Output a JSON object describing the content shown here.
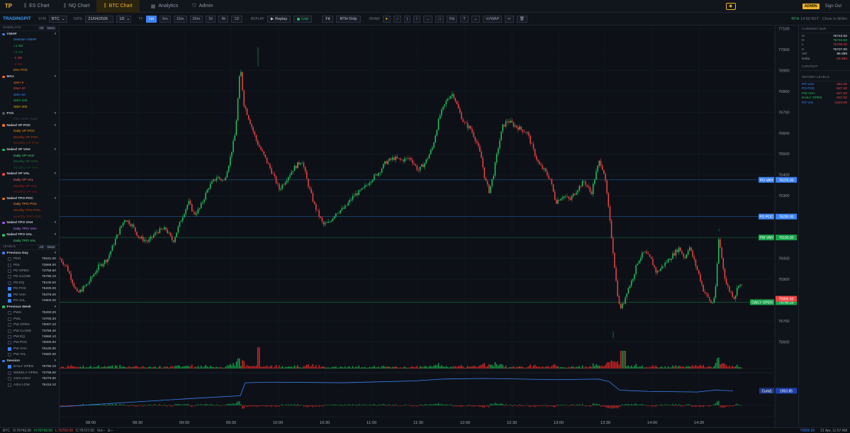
{
  "topbar": {
    "logo": "TP",
    "tabs": [
      {
        "label": "ES Chart",
        "icon": "candles-icon"
      },
      {
        "label": "NQ Chart",
        "icon": "candles-icon"
      },
      {
        "label": "BTC Chart",
        "icon": "candles-icon"
      },
      {
        "label": "Analytics",
        "icon": "grid-icon"
      },
      {
        "label": "Admin",
        "icon": "shield-icon"
      }
    ],
    "active_tab": "BTC Chart",
    "admin_badge": "ADMIN",
    "sign_out": "Sign Out"
  },
  "toolbar": {
    "brand": "TRADINGPIT",
    "sym_label": "SYM",
    "symbol": "BTC",
    "date_label": "DATE",
    "date": "21/04/2026",
    "range": "1D",
    "tf_label": "TF",
    "timeframes": [
      "1m",
      "5m",
      "15m",
      "30m",
      "1h",
      "4h",
      "1D"
    ],
    "active_tf": "1m",
    "replay_label": "REPLAY",
    "replay_btn": "Replay",
    "live_btn": "Live",
    "fit_btn": "Fit",
    "rth_btn": "RTH Only",
    "draw_label": "DRAW",
    "draw_tools": [
      "●",
      "–",
      "|",
      "/",
      "→",
      "□",
      "Fib",
      "T",
      "⌄",
      "xVWAP",
      "↩",
      "🗑"
    ],
    "status_rth": "RTH",
    "status_time": "14:50 BST · Close in 6h9m"
  },
  "sidebar": {
    "overlays_title": "OVERLAYS",
    "all": "All",
    "none": "None",
    "overlay_groups": [
      {
        "name": "VWAP",
        "color": "#3b82f6",
        "items": [
          {
            "label": "Session VWAP",
            "color": "#3b9cf0"
          },
          {
            "label": "+1 SD",
            "color": "#22c55e"
          },
          {
            "label": "+2 SD",
            "color": "#15803d"
          },
          {
            "label": "-1 SD",
            "color": "#ef4444"
          },
          {
            "label": "-2 SD",
            "color": "#991b1b"
          },
          {
            "label": "Dev POC",
            "color": "#f59e0b"
          }
        ]
      },
      {
        "name": "MAs",
        "color": "#f97316",
        "items": [
          {
            "label": "SMA 9",
            "color": "#f97316"
          },
          {
            "label": "EMA 20",
            "color": "#ef4444"
          },
          {
            "label": "SMA 50",
            "color": "#3b82f6"
          },
          {
            "label": "SMA 100",
            "color": "#22c55e"
          },
          {
            "label": "SMA 200",
            "color": "#eab308"
          }
        ]
      },
      {
        "name": "FVG",
        "color": "#4b5563",
        "items": [
          {
            "label": "Fair Value Gaps",
            "color": "#374151"
          }
        ]
      },
      {
        "name": "Naked VP POC",
        "color": "#f97316",
        "items": [
          {
            "label": "Daily VP POC",
            "color": "#f59e0b"
          },
          {
            "label": "Weekly VP POC",
            "color": "#c2410c"
          },
          {
            "label": "Monthly VP POC",
            "color": "#7c2d12"
          }
        ]
      },
      {
        "name": "Naked VP VAH",
        "color": "#22c55e",
        "items": [
          {
            "label": "Daily VP VAH",
            "color": "#4ade80"
          },
          {
            "label": "Weekly VP VAH",
            "color": "#15803d"
          },
          {
            "label": "Monthly VP VAH",
            "color": "#14532d"
          }
        ]
      },
      {
        "name": "Naked VP VAL",
        "color": "#ef4444",
        "items": [
          {
            "label": "Daily VP VAL",
            "color": "#f87171"
          },
          {
            "label": "Weekly VP VAL",
            "color": "#b91c1c"
          },
          {
            "label": "Monthly VP VAL",
            "color": "#7f1d1d"
          }
        ]
      },
      {
        "name": "Naked TPO POC",
        "color": "#f97316",
        "items": [
          {
            "label": "Daily TPO POC",
            "color": "#fb923c"
          },
          {
            "label": "Weekly TPO POC",
            "color": "#c2410c"
          },
          {
            "label": "Monthly TPO POC",
            "color": "#7c2d12"
          }
        ]
      },
      {
        "name": "Naked TPO VAH",
        "color": "#a855f7",
        "items": [
          {
            "label": "Daily TPO VAH",
            "color": "#c084fc"
          }
        ]
      },
      {
        "name": "Naked TPO VAL",
        "color": "#22c55e",
        "items": [
          {
            "label": "Daily TPO VAL",
            "color": "#4ade80"
          }
        ]
      }
    ],
    "levels_title": "LEVELS",
    "level_groups": [
      {
        "name": "Previous Day",
        "color": "#3b82f6",
        "items": [
          {
            "label": "PDH",
            "value": "76531.00",
            "checked": false
          },
          {
            "label": "PDL",
            "value": "73669.00",
            "checked": false
          },
          {
            "label": "PD OPEN",
            "value": "73758.50",
            "checked": false
          },
          {
            "label": "PD CLOSE",
            "value": "75790.10",
            "checked": false
          },
          {
            "label": "PD EQ",
            "value": "75100.00",
            "checked": false
          },
          {
            "label": "PD POC",
            "value": "76200.00",
            "checked": true
          },
          {
            "label": "PD VAH",
            "value": "76376.00",
            "checked": true
          },
          {
            "label": "PD VAL",
            "value": "74903.00",
            "checked": true
          }
        ]
      },
      {
        "name": "Previous Week",
        "color": "#22c55e",
        "items": [
          {
            "label": "PWH",
            "value": "76200.00",
            "checked": false
          },
          {
            "label": "PWL",
            "value": "73700.20",
            "checked": false
          },
          {
            "label": "PW OPEN",
            "value": "75007.10",
            "checked": false
          },
          {
            "label": "PW CLOSE",
            "value": "73758.40",
            "checked": false
          },
          {
            "label": "PW EQ",
            "value": "74950.10",
            "checked": false
          },
          {
            "label": "PW POC",
            "value": "75000.00",
            "checked": false
          },
          {
            "label": "PW VAH",
            "value": "76100.00",
            "checked": true
          },
          {
            "label": "PW VAL",
            "value": "74582.00",
            "checked": false
          }
        ]
      },
      {
        "name": "Session",
        "color": "#3b82f6",
        "items": [
          {
            "label": "DAILY OPEN",
            "value": "75790.10",
            "checked": true
          },
          {
            "label": "WEEKLY OPEN",
            "value": "73758.50",
            "checked": false
          },
          {
            "label": "ASIA HIGH",
            "value": "76276.60",
            "checked": false
          },
          {
            "label": "ASIA LOW",
            "value": "75415.10",
            "checked": false
          }
        ]
      }
    ]
  },
  "chart_data": {
    "type": "candlestick",
    "x_ticks": [
      "08:00",
      "08:30",
      "09:00",
      "09:30",
      "10:00",
      "10:30",
      "11:00",
      "11:30",
      "12:00",
      "12:30",
      "13:00",
      "13:30",
      "14:00",
      "14:30"
    ],
    "y_ticks": [
      77100,
      77000,
      76900,
      76800,
      76700,
      76600,
      76500,
      76400,
      76300,
      76200,
      76100,
      76000,
      75900,
      75800,
      75700,
      75600
    ],
    "ylim": [
      75520,
      77115
    ],
    "path": [
      [
        0,
        76000
      ],
      [
        10,
        75960
      ],
      [
        25,
        75830
      ],
      [
        40,
        75880
      ],
      [
        55,
        75960
      ],
      [
        68,
        76000
      ],
      [
        80,
        76100
      ],
      [
        92,
        76190
      ],
      [
        102,
        76160
      ],
      [
        112,
        76100
      ],
      [
        125,
        76080
      ],
      [
        138,
        76130
      ],
      [
        150,
        76140
      ],
      [
        160,
        76080
      ],
      [
        172,
        76190
      ],
      [
        182,
        76270
      ],
      [
        190,
        76210
      ],
      [
        198,
        76240
      ],
      [
        210,
        76340
      ],
      [
        222,
        76390
      ],
      [
        232,
        76370
      ],
      [
        240,
        76470
      ],
      [
        248,
        76600
      ],
      [
        255,
        76920
      ],
      [
        260,
        76740
      ],
      [
        268,
        76660
      ],
      [
        278,
        76560
      ],
      [
        290,
        76480
      ],
      [
        300,
        76410
      ],
      [
        310,
        76330
      ],
      [
        320,
        76380
      ],
      [
        330,
        76430
      ],
      [
        342,
        76470
      ],
      [
        350,
        76360
      ],
      [
        360,
        76250
      ],
      [
        372,
        76160
      ],
      [
        380,
        76170
      ],
      [
        390,
        76220
      ],
      [
        402,
        76240
      ],
      [
        415,
        76300
      ],
      [
        428,
        76330
      ],
      [
        440,
        76380
      ],
      [
        450,
        76410
      ],
      [
        460,
        76460
      ],
      [
        472,
        76480
      ],
      [
        482,
        76470
      ],
      [
        495,
        76480
      ],
      [
        506,
        76420
      ],
      [
        516,
        76460
      ],
      [
        526,
        76530
      ],
      [
        536,
        76680
      ],
      [
        548,
        76770
      ],
      [
        555,
        76790
      ],
      [
        562,
        76720
      ],
      [
        570,
        76650
      ],
      [
        580,
        76620
      ],
      [
        588,
        76560
      ],
      [
        595,
        76480
      ],
      [
        600,
        76380
      ],
      [
        606,
        76320
      ],
      [
        612,
        76400
      ],
      [
        618,
        76520
      ],
      [
        625,
        76630
      ],
      [
        632,
        76660
      ],
      [
        640,
        76640
      ],
      [
        650,
        76620
      ],
      [
        660,
        76600
      ],
      [
        668,
        76520
      ],
      [
        676,
        76450
      ],
      [
        684,
        76420
      ],
      [
        692,
        76380
      ],
      [
        700,
        76270
      ],
      [
        710,
        76300
      ],
      [
        720,
        76280
      ],
      [
        730,
        76330
      ],
      [
        740,
        76370
      ],
      [
        750,
        76310
      ],
      [
        756,
        76400
      ],
      [
        762,
        76470
      ],
      [
        768,
        76410
      ],
      [
        772,
        76310
      ],
      [
        780,
        76060
      ],
      [
        786,
        75860
      ],
      [
        790,
        75760
      ],
      [
        795,
        75780
      ],
      [
        800,
        75840
      ],
      [
        808,
        75900
      ],
      [
        816,
        75990
      ],
      [
        825,
        76030
      ],
      [
        835,
        75990
      ],
      [
        842,
        75930
      ],
      [
        850,
        75960
      ],
      [
        858,
        75990
      ],
      [
        866,
        76020
      ],
      [
        874,
        76050
      ],
      [
        882,
        76000
      ],
      [
        888,
        76060
      ],
      [
        895,
        75990
      ],
      [
        902,
        75920
      ],
      [
        908,
        75850
      ],
      [
        915,
        75810
      ],
      [
        920,
        75780
      ],
      [
        925,
        75830
      ],
      [
        930,
        76100
      ],
      [
        935,
        75980
      ],
      [
        940,
        75880
      ],
      [
        946,
        75840
      ],
      [
        952,
        75810
      ],
      [
        958,
        75880
      ],
      [
        964,
        75860
      ]
    ],
    "vwap": [
      [
        0,
        76010
      ],
      [
        80,
        76070
      ],
      [
        180,
        76140
      ],
      [
        255,
        76190
      ],
      [
        262,
        76400
      ],
      [
        300,
        76410
      ],
      [
        400,
        76400
      ],
      [
        500,
        76430
      ],
      [
        540,
        76460
      ],
      [
        600,
        76470
      ],
      [
        700,
        76450
      ],
      [
        760,
        76460
      ],
      [
        775,
        76420
      ],
      [
        790,
        76280
      ],
      [
        830,
        76260
      ],
      [
        900,
        76250
      ],
      [
        925,
        76280
      ],
      [
        950,
        76270
      ]
    ],
    "vwap_ylim": [
      75520,
      77115
    ],
    "volume_ylim": [
      0,
      100
    ],
    "levels": [
      {
        "name": "PD VAH",
        "value": 76376.0,
        "label": "76376.00",
        "color": "#3b82f6",
        "line": "#1e4a7a"
      },
      {
        "name": "PD POC",
        "value": 76200.0,
        "label": "76200.00",
        "color": "#3b82f6",
        "line": "#1e4a7a"
      },
      {
        "name": "PW VAH",
        "value": 76100.0,
        "label": "76100.00",
        "color": "#16a34a",
        "line": "#14532d"
      },
      {
        "name": "DAILY OPEN",
        "value": 75790.1,
        "label": "75790.10",
        "color": "#16a34a",
        "line": "#166534"
      }
    ],
    "last_price": {
      "value": 75806.5,
      "label": "75806.50",
      "color": "#ef4444"
    },
    "cum_delta": {
      "name": "CumΔ",
      "label": "1953.85"
    }
  },
  "right_panel": {
    "current_bar_title": "CURRENT BAR",
    "bar": [
      {
        "k": "O",
        "v": "76743.50",
        "color": "#e5e7eb"
      },
      {
        "k": "H",
        "v": "76743.50",
        "color": "#22c55e"
      },
      {
        "k": "L",
        "v": "76700.00",
        "color": "#ef4444"
      },
      {
        "k": "C",
        "v": "76727.00",
        "color": "#e5e7eb"
      },
      {
        "k": "Vol",
        "v": "88.389",
        "color": "#e5e7eb"
      },
      {
        "k": "Delta",
        "v": "-26.963",
        "color": "#ef4444"
      }
    ],
    "context_title": "CONTEXT",
    "nearby_title": "NEARBY LEVELS",
    "nearby": [
      {
        "k": "PD VAH",
        "v": "-351.00",
        "kc": "#3b82f6"
      },
      {
        "k": "PD POC",
        "v": "-527.00",
        "kc": "#3b82f6"
      },
      {
        "k": "PW VAH",
        "v": "-627.00",
        "kc": "#22c55e"
      },
      {
        "k": "DAILY OPEN",
        "v": "-937.00",
        "kc": "#22c55e"
      },
      {
        "k": "PD VAL",
        "v": "-1824.00",
        "kc": "#3b82f6"
      }
    ]
  },
  "footer": {
    "sym": "BTC",
    "o": "O:76743.50",
    "h": "H:76743.50",
    "l": "L:76700.00",
    "c": "C:76727.00",
    "vol": "Vol:–",
    "delta": "Δ:–",
    "price": "76806.50",
    "datetime": "21 Apr, 11:57 AM"
  }
}
